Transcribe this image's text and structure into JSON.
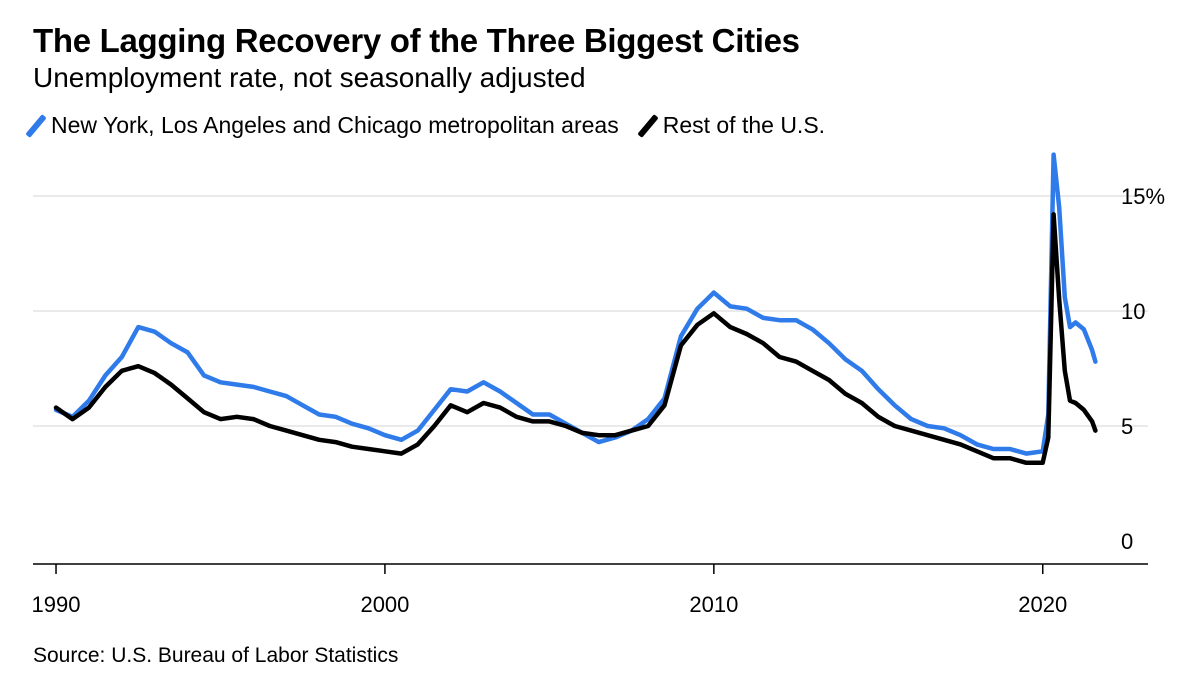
{
  "title": "The Lagging Recovery of the Three Biggest Cities",
  "subtitle": "Unemployment rate, not seasonally adjusted",
  "legend": [
    {
      "label": "New York, Los Angeles and Chicago metropolitan areas",
      "color": "#2f7bea"
    },
    {
      "label": "Rest of the U.S.",
      "color": "#000000"
    }
  ],
  "source": "Source: U.S. Bureau of Labor Statistics",
  "chart_data": {
    "type": "line",
    "title": "The Lagging Recovery of the Three Biggest Cities",
    "subtitle": "Unemployment rate, not seasonally adjusted",
    "xlabel": "",
    "ylabel": "",
    "xlim": [
      1989.3,
      2023.2
    ],
    "ylim": [
      -1,
      17
    ],
    "x_ticks": [
      1990,
      2000,
      2010,
      2020
    ],
    "x_tick_labels": [
      "1990",
      "2000",
      "2010",
      "2020"
    ],
    "y_ticks": [
      0,
      5,
      10,
      15
    ],
    "y_tick_labels": [
      "0",
      "5",
      "10",
      "15%"
    ],
    "grid": "horizontal",
    "legend_position": "top-left",
    "series": [
      {
        "name": "New York, Los Angeles and Chicago metropolitan areas",
        "color": "#2f7bea",
        "x": [
          1990.0,
          1990.5,
          1991.0,
          1991.5,
          1992.0,
          1992.5,
          1993.0,
          1993.5,
          1994.0,
          1994.5,
          1995.0,
          1995.5,
          1996.0,
          1996.5,
          1997.0,
          1997.5,
          1998.0,
          1998.5,
          1999.0,
          1999.5,
          2000.0,
          2000.5,
          2001.0,
          2001.5,
          2002.0,
          2002.5,
          2003.0,
          2003.5,
          2004.0,
          2004.5,
          2005.0,
          2005.5,
          2006.0,
          2006.5,
          2007.0,
          2007.5,
          2008.0,
          2008.5,
          2009.0,
          2009.5,
          2010.0,
          2010.5,
          2011.0,
          2011.5,
          2012.0,
          2012.5,
          2013.0,
          2013.5,
          2014.0,
          2014.5,
          2015.0,
          2015.5,
          2016.0,
          2016.5,
          2017.0,
          2017.5,
          2018.0,
          2018.5,
          2019.0,
          2019.5,
          2020.0,
          2020.17,
          2020.33,
          2020.5,
          2020.67,
          2020.83,
          2021.0,
          2021.25,
          2021.5,
          2021.6
        ],
        "y": [
          5.7,
          5.4,
          6.1,
          7.2,
          8.0,
          9.3,
          9.1,
          8.6,
          8.2,
          7.2,
          6.9,
          6.8,
          6.7,
          6.5,
          6.3,
          5.9,
          5.5,
          5.4,
          5.1,
          4.9,
          4.6,
          4.4,
          4.8,
          5.7,
          6.6,
          6.5,
          6.9,
          6.5,
          6.0,
          5.5,
          5.5,
          5.1,
          4.7,
          4.3,
          4.5,
          4.8,
          5.3,
          6.2,
          8.9,
          10.1,
          10.8,
          10.2,
          10.1,
          9.7,
          9.6,
          9.6,
          9.2,
          8.6,
          7.9,
          7.4,
          6.6,
          5.9,
          5.3,
          5.0,
          4.9,
          4.6,
          4.2,
          4.0,
          4.0,
          3.8,
          3.9,
          5.5,
          16.8,
          14.5,
          10.6,
          9.3,
          9.5,
          9.2,
          8.3,
          7.8
        ]
      },
      {
        "name": "Rest of the U.S.",
        "color": "#000000",
        "x": [
          1990.0,
          1990.5,
          1991.0,
          1991.5,
          1992.0,
          1992.5,
          1993.0,
          1993.5,
          1994.0,
          1994.5,
          1995.0,
          1995.5,
          1996.0,
          1996.5,
          1997.0,
          1997.5,
          1998.0,
          1998.5,
          1999.0,
          1999.5,
          2000.0,
          2000.5,
          2001.0,
          2001.5,
          2002.0,
          2002.5,
          2003.0,
          2003.5,
          2004.0,
          2004.5,
          2005.0,
          2005.5,
          2006.0,
          2006.5,
          2007.0,
          2007.5,
          2008.0,
          2008.5,
          2009.0,
          2009.5,
          2010.0,
          2010.5,
          2011.0,
          2011.5,
          2012.0,
          2012.5,
          2013.0,
          2013.5,
          2014.0,
          2014.5,
          2015.0,
          2015.5,
          2016.0,
          2016.5,
          2017.0,
          2017.5,
          2018.0,
          2018.5,
          2019.0,
          2019.5,
          2020.0,
          2020.17,
          2020.33,
          2020.5,
          2020.67,
          2020.83,
          2021.0,
          2021.25,
          2021.5,
          2021.6
        ],
        "y": [
          5.8,
          5.3,
          5.8,
          6.7,
          7.4,
          7.6,
          7.3,
          6.8,
          6.2,
          5.6,
          5.3,
          5.4,
          5.3,
          5.0,
          4.8,
          4.6,
          4.4,
          4.3,
          4.1,
          4.0,
          3.9,
          3.8,
          4.2,
          5.0,
          5.9,
          5.6,
          6.0,
          5.8,
          5.4,
          5.2,
          5.2,
          5.0,
          4.7,
          4.6,
          4.6,
          4.8,
          5.0,
          5.9,
          8.5,
          9.4,
          9.9,
          9.3,
          9.0,
          8.6,
          8.0,
          7.8,
          7.4,
          7.0,
          6.4,
          6.0,
          5.4,
          5.0,
          4.8,
          4.6,
          4.4,
          4.2,
          3.9,
          3.6,
          3.6,
          3.4,
          3.4,
          4.5,
          14.2,
          10.5,
          7.4,
          6.1,
          6.0,
          5.7,
          5.2,
          4.8
        ]
      }
    ]
  }
}
